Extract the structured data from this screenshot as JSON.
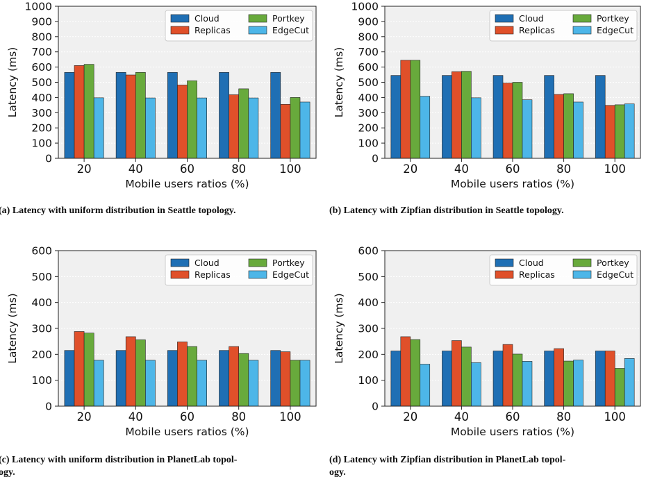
{
  "colors": {
    "cloud": "#1f6fb4",
    "replicas": "#e0502a",
    "portkey": "#68aa3c",
    "edgecut": "#4db6e8",
    "plot_background": "#f0f0f0",
    "grid": "#ffffff",
    "bar_edge": "#222222"
  },
  "chart_data": [
    {
      "type": "bar",
      "id": "a",
      "caption": [
        "(a) Latency with uniform distribution in Seattle topology."
      ],
      "xlabel": "Mobile users ratios (%)",
      "ylabel": "Latency (ms)",
      "categories": [
        "20",
        "40",
        "60",
        "80",
        "100"
      ],
      "ylim": [
        0,
        1000
      ],
      "yticks": [
        "0",
        "100",
        "200",
        "300",
        "400",
        "500",
        "600",
        "700",
        "800",
        "900",
        "1000"
      ],
      "legend_position": "top-right",
      "grid": true,
      "series": [
        {
          "name": "Cloud",
          "color_key": "cloud",
          "values": [
            565,
            565,
            565,
            565,
            565
          ]
        },
        {
          "name": "Replicas",
          "color_key": "replicas",
          "values": [
            610,
            548,
            482,
            418,
            355
          ]
        },
        {
          "name": "Portkey",
          "color_key": "portkey",
          "values": [
            618,
            565,
            510,
            457,
            400
          ]
        },
        {
          "name": "EdgeCut",
          "color_key": "edgecut",
          "values": [
            398,
            397,
            397,
            397,
            370
          ]
        }
      ]
    },
    {
      "type": "bar",
      "id": "b",
      "caption": [
        "(b) Latency with Zipfian distribution in Seattle topology."
      ],
      "xlabel": "Mobile users ratios (%)",
      "ylabel": "Latency (ms)",
      "categories": [
        "20",
        "40",
        "60",
        "80",
        "100"
      ],
      "ylim": [
        0,
        1000
      ],
      "yticks": [
        "0",
        "100",
        "200",
        "300",
        "400",
        "500",
        "600",
        "700",
        "800",
        "900",
        "1000"
      ],
      "legend_position": "top-right",
      "grid": true,
      "series": [
        {
          "name": "Cloud",
          "color_key": "cloud",
          "values": [
            545,
            545,
            545,
            545,
            545
          ]
        },
        {
          "name": "Replicas",
          "color_key": "replicas",
          "values": [
            645,
            570,
            495,
            420,
            348
          ]
        },
        {
          "name": "Portkey",
          "color_key": "portkey",
          "values": [
            645,
            572,
            500,
            425,
            352
          ]
        },
        {
          "name": "EdgeCut",
          "color_key": "edgecut",
          "values": [
            408,
            398,
            385,
            370,
            358
          ]
        }
      ]
    },
    {
      "type": "bar",
      "id": "c",
      "caption": [
        "(c) Latency with uniform distribution in PlanetLab topol-",
        "ogy."
      ],
      "xlabel": "Mobile users ratios (%)",
      "ylabel": "Latency (ms)",
      "categories": [
        "20",
        "40",
        "60",
        "80",
        "100"
      ],
      "ylim": [
        0,
        600
      ],
      "yticks": [
        "0",
        "100",
        "200",
        "300",
        "400",
        "500",
        "600"
      ],
      "legend_position": "top-right",
      "grid": true,
      "series": [
        {
          "name": "Cloud",
          "color_key": "cloud",
          "values": [
            215,
            215,
            215,
            215,
            215
          ]
        },
        {
          "name": "Replicas",
          "color_key": "replicas",
          "values": [
            288,
            268,
            248,
            230,
            210
          ]
        },
        {
          "name": "Portkey",
          "color_key": "portkey",
          "values": [
            282,
            256,
            230,
            203,
            177
          ]
        },
        {
          "name": "EdgeCut",
          "color_key": "edgecut",
          "values": [
            177,
            177,
            177,
            177,
            177
          ]
        }
      ]
    },
    {
      "type": "bar",
      "id": "d",
      "caption": [
        "(d) Latency with Zipfian distribution in PlanetLab topol-",
        "ogy."
      ],
      "xlabel": "Mobile users ratios (%)",
      "ylabel": "Latency (ms)",
      "categories": [
        "20",
        "40",
        "60",
        "80",
        "100"
      ],
      "ylim": [
        0,
        600
      ],
      "yticks": [
        "0",
        "100",
        "200",
        "300",
        "400",
        "500",
        "600"
      ],
      "legend_position": "top-right",
      "grid": true,
      "series": [
        {
          "name": "Cloud",
          "color_key": "cloud",
          "values": [
            213,
            213,
            213,
            213,
            213
          ]
        },
        {
          "name": "Replicas",
          "color_key": "replicas",
          "values": [
            268,
            253,
            238,
            222,
            213
          ]
        },
        {
          "name": "Portkey",
          "color_key": "portkey",
          "values": [
            257,
            228,
            201,
            174,
            146
          ]
        },
        {
          "name": "EdgeCut",
          "color_key": "edgecut",
          "values": [
            162,
            168,
            173,
            178,
            184
          ]
        }
      ]
    }
  ]
}
